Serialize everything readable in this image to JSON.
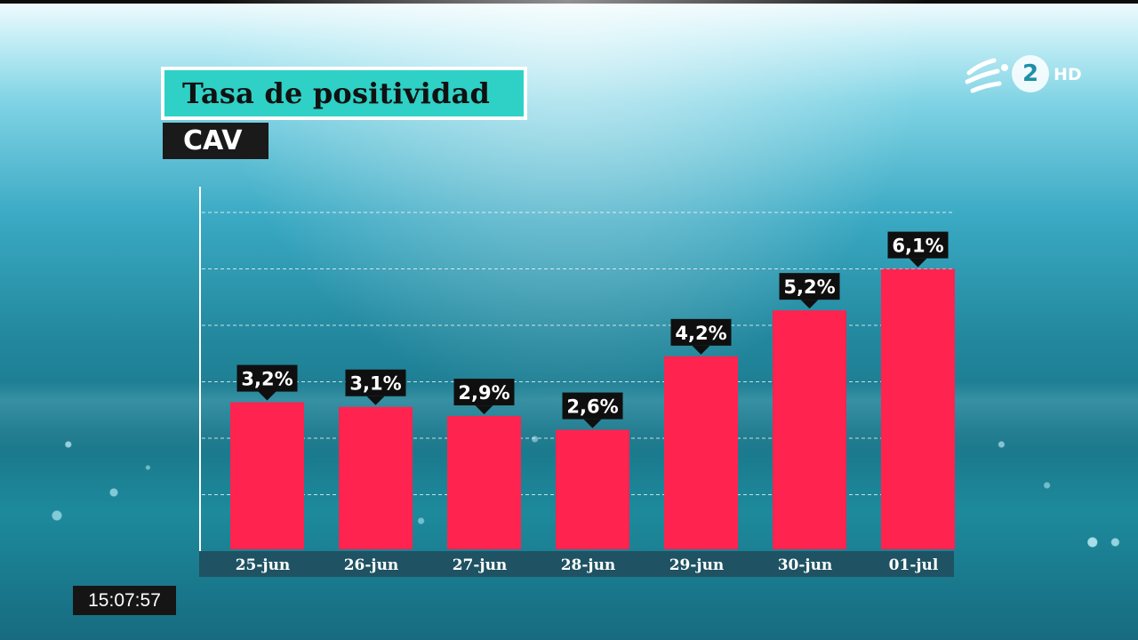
{
  "header": {
    "title": "Tasa de positividad",
    "subtitle": "CAV"
  },
  "channel_logo": {
    "number": "2",
    "quality": "HD"
  },
  "clock": {
    "time": "15:07:57"
  },
  "colors": {
    "bar": "#ff2450",
    "label_bg": "#0f0f0f",
    "axis_strip": "#1f4e5e",
    "title_bg": "#2fd1c6"
  },
  "chart_data": {
    "type": "bar",
    "categories": [
      "25-jun",
      "26-jun",
      "27-jun",
      "28-jun",
      "29-jun",
      "30-jun",
      "01-jul"
    ],
    "values": [
      3.2,
      3.1,
      2.9,
      2.6,
      4.2,
      5.2,
      6.1
    ],
    "value_labels": [
      "3,2%",
      "3,1%",
      "2,9%",
      "2,6%",
      "4,2%",
      "5,2%",
      "6,1%"
    ],
    "title": "Tasa de positividad",
    "subtitle": "CAV",
    "xlabel": "",
    "ylabel": "",
    "ylim": [
      0,
      6
    ],
    "grid": true
  }
}
